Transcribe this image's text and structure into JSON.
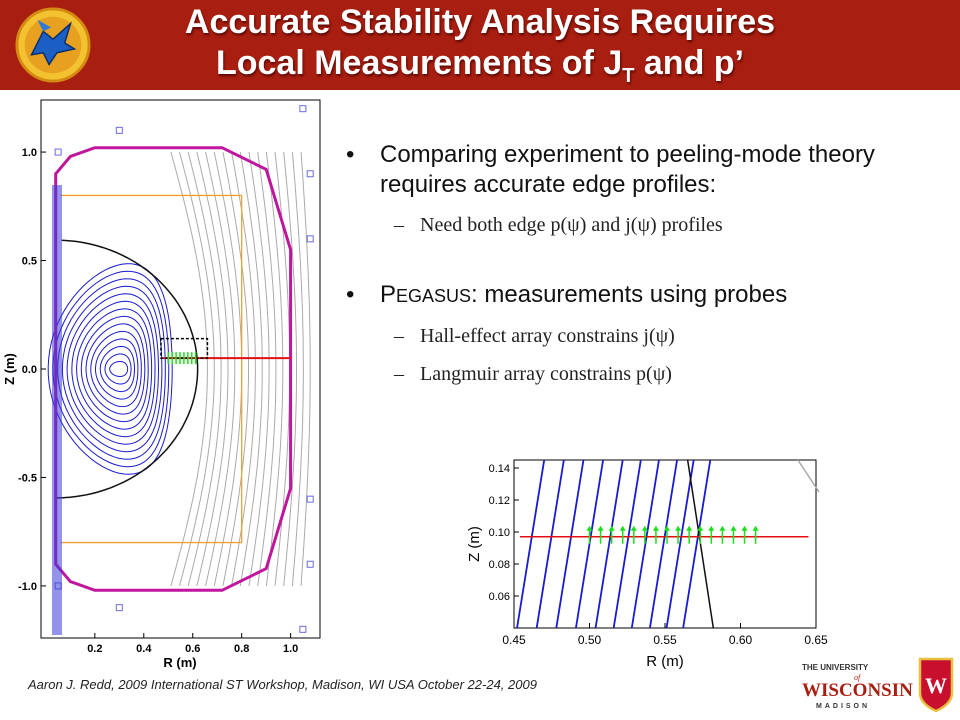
{
  "header": {
    "title_line1": "Accurate Stability Analysis Requires",
    "title_line2_pre": "Local Measurements of J",
    "title_line2_sub": "T",
    "title_line2_post": " and p’"
  },
  "bullets": {
    "b1": "Comparing experiment to peeling-mode theory requires accurate edge profiles:",
    "b1_sub1": "Need both edge p(ψ) and j(ψ) profiles",
    "b2_initial": "P",
    "b2_smallcaps": "EGASUS",
    "b2_rest": ": measurements using probes",
    "b2_sub1": "Hall-effect array constrains j(ψ)",
    "b2_sub2": "Langmuir array constrains p(ψ)"
  },
  "chart_data": [
    {
      "type": "scatter",
      "title": "",
      "xlabel": "R (m)",
      "ylabel": "Z (m)",
      "xlim": [
        -0.02,
        1.12
      ],
      "ylim": [
        -1.24,
        1.24
      ],
      "xticks": [
        "0.2",
        "0.4",
        "0.6",
        "0.8",
        "1.0"
      ],
      "yticks": [
        "1.0",
        "0.5",
        "0.0",
        "-0.5",
        "-1.0"
      ],
      "probe_line_z": 0.05
    },
    {
      "type": "line",
      "title": "",
      "xlabel": "R (m)",
      "ylabel": "Z (m)",
      "xlim": [
        0.45,
        0.65
      ],
      "ylim": [
        0.04,
        0.145
      ],
      "xticks": [
        "0.45",
        "0.50",
        "0.55",
        "0.60",
        "0.65"
      ],
      "yticks": [
        "0.14",
        "0.12",
        "0.10",
        "0.08",
        "0.06"
      ],
      "probe_line_z": 0.097,
      "probe_r_range": [
        0.5,
        0.61
      ]
    }
  ],
  "footer": {
    "citation": "Aaron J. Redd, 2009 International ST Workshop, Madison, WI USA October 22-24, 2009"
  },
  "uw_logo": {
    "line1": "THE UNIVERSITY",
    "line2": "of",
    "line3": "WISCONSIN",
    "line4": "MADISON",
    "crest_letter": "W"
  },
  "colors": {
    "header": "#a81e10",
    "vessel": "#c0169e",
    "flux_inner": "#1a1ad0",
    "flux_outer": "#aaaaaa",
    "probe_line": "#e01010",
    "probes": "#19e019",
    "coil_orange": "#f0a030",
    "coil_blue": "#6b6be0"
  }
}
